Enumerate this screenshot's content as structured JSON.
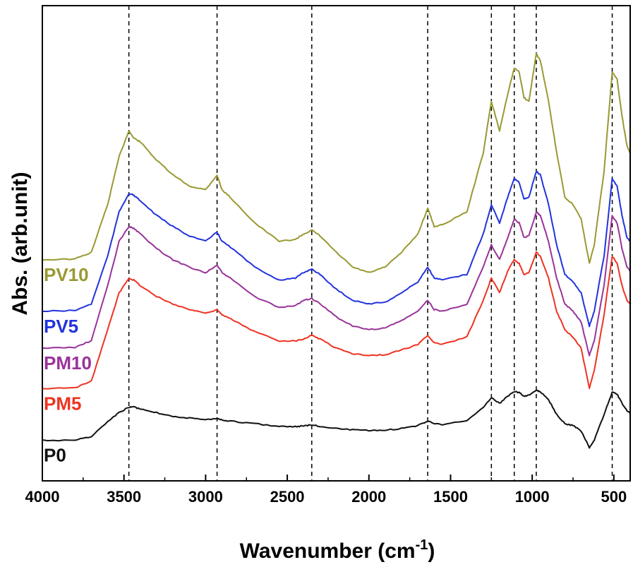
{
  "chart_data": {
    "type": "line",
    "title": "",
    "xlabel_main": "Wavenumber (cm",
    "xlabel_sup": "-1",
    "xlabel_tail": ")",
    "ylabel": "Abs. (arb.unit)",
    "xlim": [
      4000,
      400
    ],
    "x_reversed": true,
    "x_ticks": [
      4000,
      3500,
      3000,
      2500,
      2000,
      1500,
      1000,
      500
    ],
    "x_tick_labels": [
      "4000",
      "3500",
      "3000",
      "2500",
      "2000",
      "1500",
      "1000",
      "500"
    ],
    "y_ticks_shown": false,
    "grid": false,
    "reference_lines": [
      3470,
      2930,
      2350,
      1640,
      1250,
      1110,
      975,
      510
    ],
    "series": [
      {
        "name": "PV10",
        "color": "#999933",
        "points": [
          [
            4000,
            0.81
          ],
          [
            3800,
            0.812
          ],
          [
            3700,
            0.83
          ],
          [
            3600,
            0.96
          ],
          [
            3530,
            1.09
          ],
          [
            3470,
            1.16
          ],
          [
            3440,
            1.14
          ],
          [
            3400,
            1.13
          ],
          [
            3300,
            1.08
          ],
          [
            3200,
            1.04
          ],
          [
            3100,
            1.01
          ],
          [
            3000,
            1.0
          ],
          [
            2930,
            1.04
          ],
          [
            2900,
            1.0
          ],
          [
            2850,
            0.98
          ],
          [
            2700,
            0.91
          ],
          [
            2550,
            0.86
          ],
          [
            2450,
            0.865
          ],
          [
            2400,
            0.88
          ],
          [
            2350,
            0.89
          ],
          [
            2300,
            0.875
          ],
          [
            2200,
            0.83
          ],
          [
            2100,
            0.79
          ],
          [
            2000,
            0.775
          ],
          [
            1900,
            0.79
          ],
          [
            1800,
            0.83
          ],
          [
            1700,
            0.88
          ],
          [
            1640,
            0.95
          ],
          [
            1600,
            0.9
          ],
          [
            1550,
            0.905
          ],
          [
            1400,
            0.94
          ],
          [
            1300,
            1.1
          ],
          [
            1250,
            1.24
          ],
          [
            1200,
            1.16
          ],
          [
            1150,
            1.26
          ],
          [
            1110,
            1.33
          ],
          [
            1080,
            1.32
          ],
          [
            1050,
            1.25
          ],
          [
            1020,
            1.24
          ],
          [
            975,
            1.37
          ],
          [
            950,
            1.35
          ],
          [
            900,
            1.24
          ],
          [
            850,
            1.1
          ],
          [
            800,
            0.98
          ],
          [
            750,
            0.96
          ],
          [
            700,
            0.92
          ],
          [
            650,
            0.8
          ],
          [
            620,
            0.85
          ],
          [
            560,
            1.05
          ],
          [
            510,
            1.32
          ],
          [
            480,
            1.3
          ],
          [
            450,
            1.2
          ],
          [
            420,
            1.12
          ],
          [
            400,
            1.1
          ]
        ]
      },
      {
        "name": "PV5",
        "color": "#2233dd",
        "points": [
          [
            4000,
            0.67
          ],
          [
            3800,
            0.672
          ],
          [
            3700,
            0.69
          ],
          [
            3600,
            0.82
          ],
          [
            3530,
            0.94
          ],
          [
            3470,
            0.99
          ],
          [
            3440,
            0.985
          ],
          [
            3400,
            0.97
          ],
          [
            3300,
            0.93
          ],
          [
            3200,
            0.9
          ],
          [
            3100,
            0.875
          ],
          [
            3000,
            0.86
          ],
          [
            2930,
            0.885
          ],
          [
            2900,
            0.86
          ],
          [
            2850,
            0.845
          ],
          [
            2700,
            0.79
          ],
          [
            2550,
            0.755
          ],
          [
            2450,
            0.76
          ],
          [
            2400,
            0.775
          ],
          [
            2350,
            0.785
          ],
          [
            2300,
            0.77
          ],
          [
            2200,
            0.73
          ],
          [
            2100,
            0.7
          ],
          [
            2000,
            0.69
          ],
          [
            1900,
            0.695
          ],
          [
            1800,
            0.72
          ],
          [
            1700,
            0.75
          ],
          [
            1640,
            0.79
          ],
          [
            1600,
            0.76
          ],
          [
            1550,
            0.755
          ],
          [
            1400,
            0.77
          ],
          [
            1300,
            0.88
          ],
          [
            1250,
            0.96
          ],
          [
            1200,
            0.91
          ],
          [
            1150,
            0.98
          ],
          [
            1110,
            1.03
          ],
          [
            1080,
            1.02
          ],
          [
            1050,
            0.975
          ],
          [
            1020,
            0.98
          ],
          [
            975,
            1.05
          ],
          [
            950,
            1.04
          ],
          [
            900,
            0.96
          ],
          [
            850,
            0.85
          ],
          [
            800,
            0.77
          ],
          [
            750,
            0.75
          ],
          [
            700,
            0.72
          ],
          [
            650,
            0.63
          ],
          [
            620,
            0.67
          ],
          [
            560,
            0.82
          ],
          [
            510,
            1.03
          ],
          [
            480,
            1.01
          ],
          [
            450,
            0.93
          ],
          [
            420,
            0.87
          ],
          [
            400,
            0.86
          ]
        ]
      },
      {
        "name": "PM10",
        "color": "#993399",
        "points": [
          [
            4000,
            0.57
          ],
          [
            3800,
            0.572
          ],
          [
            3700,
            0.59
          ],
          [
            3600,
            0.74
          ],
          [
            3530,
            0.86
          ],
          [
            3470,
            0.9
          ],
          [
            3440,
            0.895
          ],
          [
            3400,
            0.88
          ],
          [
            3300,
            0.84
          ],
          [
            3200,
            0.81
          ],
          [
            3100,
            0.79
          ],
          [
            3000,
            0.775
          ],
          [
            2930,
            0.795
          ],
          [
            2900,
            0.775
          ],
          [
            2850,
            0.76
          ],
          [
            2700,
            0.71
          ],
          [
            2550,
            0.68
          ],
          [
            2450,
            0.685
          ],
          [
            2400,
            0.7
          ],
          [
            2350,
            0.705
          ],
          [
            2300,
            0.69
          ],
          [
            2200,
            0.655
          ],
          [
            2100,
            0.63
          ],
          [
            2000,
            0.62
          ],
          [
            1900,
            0.625
          ],
          [
            1800,
            0.645
          ],
          [
            1700,
            0.67
          ],
          [
            1640,
            0.7
          ],
          [
            1600,
            0.675
          ],
          [
            1550,
            0.67
          ],
          [
            1400,
            0.69
          ],
          [
            1300,
            0.79
          ],
          [
            1250,
            0.85
          ],
          [
            1200,
            0.81
          ],
          [
            1150,
            0.87
          ],
          [
            1110,
            0.92
          ],
          [
            1080,
            0.91
          ],
          [
            1050,
            0.87
          ],
          [
            1020,
            0.875
          ],
          [
            975,
            0.94
          ],
          [
            950,
            0.93
          ],
          [
            900,
            0.86
          ],
          [
            850,
            0.76
          ],
          [
            800,
            0.69
          ],
          [
            750,
            0.67
          ],
          [
            700,
            0.64
          ],
          [
            650,
            0.55
          ],
          [
            620,
            0.59
          ],
          [
            560,
            0.74
          ],
          [
            510,
            0.93
          ],
          [
            480,
            0.91
          ],
          [
            450,
            0.84
          ],
          [
            420,
            0.79
          ],
          [
            400,
            0.78
          ]
        ]
      },
      {
        "name": "PM5",
        "color": "#ee3322",
        "points": [
          [
            4000,
            0.46
          ],
          [
            3800,
            0.462
          ],
          [
            3700,
            0.48
          ],
          [
            3600,
            0.62
          ],
          [
            3530,
            0.72
          ],
          [
            3470,
            0.76
          ],
          [
            3440,
            0.755
          ],
          [
            3400,
            0.74
          ],
          [
            3300,
            0.71
          ],
          [
            3200,
            0.69
          ],
          [
            3100,
            0.675
          ],
          [
            3000,
            0.665
          ],
          [
            2930,
            0.675
          ],
          [
            2900,
            0.66
          ],
          [
            2850,
            0.65
          ],
          [
            2700,
            0.615
          ],
          [
            2550,
            0.59
          ],
          [
            2450,
            0.59
          ],
          [
            2400,
            0.595
          ],
          [
            2350,
            0.605
          ],
          [
            2300,
            0.595
          ],
          [
            2200,
            0.57
          ],
          [
            2100,
            0.555
          ],
          [
            2000,
            0.55
          ],
          [
            1900,
            0.552
          ],
          [
            1800,
            0.565
          ],
          [
            1700,
            0.58
          ],
          [
            1640,
            0.605
          ],
          [
            1600,
            0.585
          ],
          [
            1550,
            0.58
          ],
          [
            1400,
            0.6
          ],
          [
            1300,
            0.7
          ],
          [
            1250,
            0.76
          ],
          [
            1200,
            0.72
          ],
          [
            1150,
            0.78
          ],
          [
            1110,
            0.81
          ],
          [
            1080,
            0.8
          ],
          [
            1050,
            0.77
          ],
          [
            1020,
            0.775
          ],
          [
            975,
            0.83
          ],
          [
            950,
            0.82
          ],
          [
            900,
            0.76
          ],
          [
            850,
            0.67
          ],
          [
            800,
            0.62
          ],
          [
            750,
            0.6
          ],
          [
            700,
            0.57
          ],
          [
            650,
            0.46
          ],
          [
            620,
            0.51
          ],
          [
            560,
            0.66
          ],
          [
            510,
            0.82
          ],
          [
            480,
            0.8
          ],
          [
            450,
            0.74
          ],
          [
            420,
            0.7
          ],
          [
            400,
            0.69
          ]
        ]
      },
      {
        "name": "P0",
        "color": "#111111",
        "points": [
          [
            4000,
            0.32
          ],
          [
            3800,
            0.32
          ],
          [
            3700,
            0.33
          ],
          [
            3600,
            0.37
          ],
          [
            3530,
            0.395
          ],
          [
            3470,
            0.41
          ],
          [
            3440,
            0.41
          ],
          [
            3400,
            0.405
          ],
          [
            3300,
            0.395
          ],
          [
            3200,
            0.385
          ],
          [
            3100,
            0.38
          ],
          [
            3000,
            0.375
          ],
          [
            2930,
            0.38
          ],
          [
            2900,
            0.375
          ],
          [
            2850,
            0.372
          ],
          [
            2700,
            0.365
          ],
          [
            2550,
            0.358
          ],
          [
            2450,
            0.357
          ],
          [
            2400,
            0.359
          ],
          [
            2350,
            0.362
          ],
          [
            2300,
            0.358
          ],
          [
            2200,
            0.352
          ],
          [
            2100,
            0.348
          ],
          [
            2000,
            0.346
          ],
          [
            1900,
            0.347
          ],
          [
            1800,
            0.352
          ],
          [
            1700,
            0.36
          ],
          [
            1640,
            0.372
          ],
          [
            1600,
            0.366
          ],
          [
            1550,
            0.363
          ],
          [
            1400,
            0.372
          ],
          [
            1300,
            0.41
          ],
          [
            1250,
            0.435
          ],
          [
            1200,
            0.42
          ],
          [
            1150,
            0.44
          ],
          [
            1110,
            0.452
          ],
          [
            1080,
            0.45
          ],
          [
            1050,
            0.44
          ],
          [
            1020,
            0.442
          ],
          [
            975,
            0.455
          ],
          [
            950,
            0.452
          ],
          [
            900,
            0.43
          ],
          [
            850,
            0.39
          ],
          [
            800,
            0.365
          ],
          [
            750,
            0.36
          ],
          [
            700,
            0.345
          ],
          [
            650,
            0.3
          ],
          [
            620,
            0.32
          ],
          [
            560,
            0.39
          ],
          [
            510,
            0.45
          ],
          [
            480,
            0.445
          ],
          [
            450,
            0.42
          ],
          [
            420,
            0.4
          ],
          [
            400,
            0.395
          ]
        ]
      }
    ]
  }
}
